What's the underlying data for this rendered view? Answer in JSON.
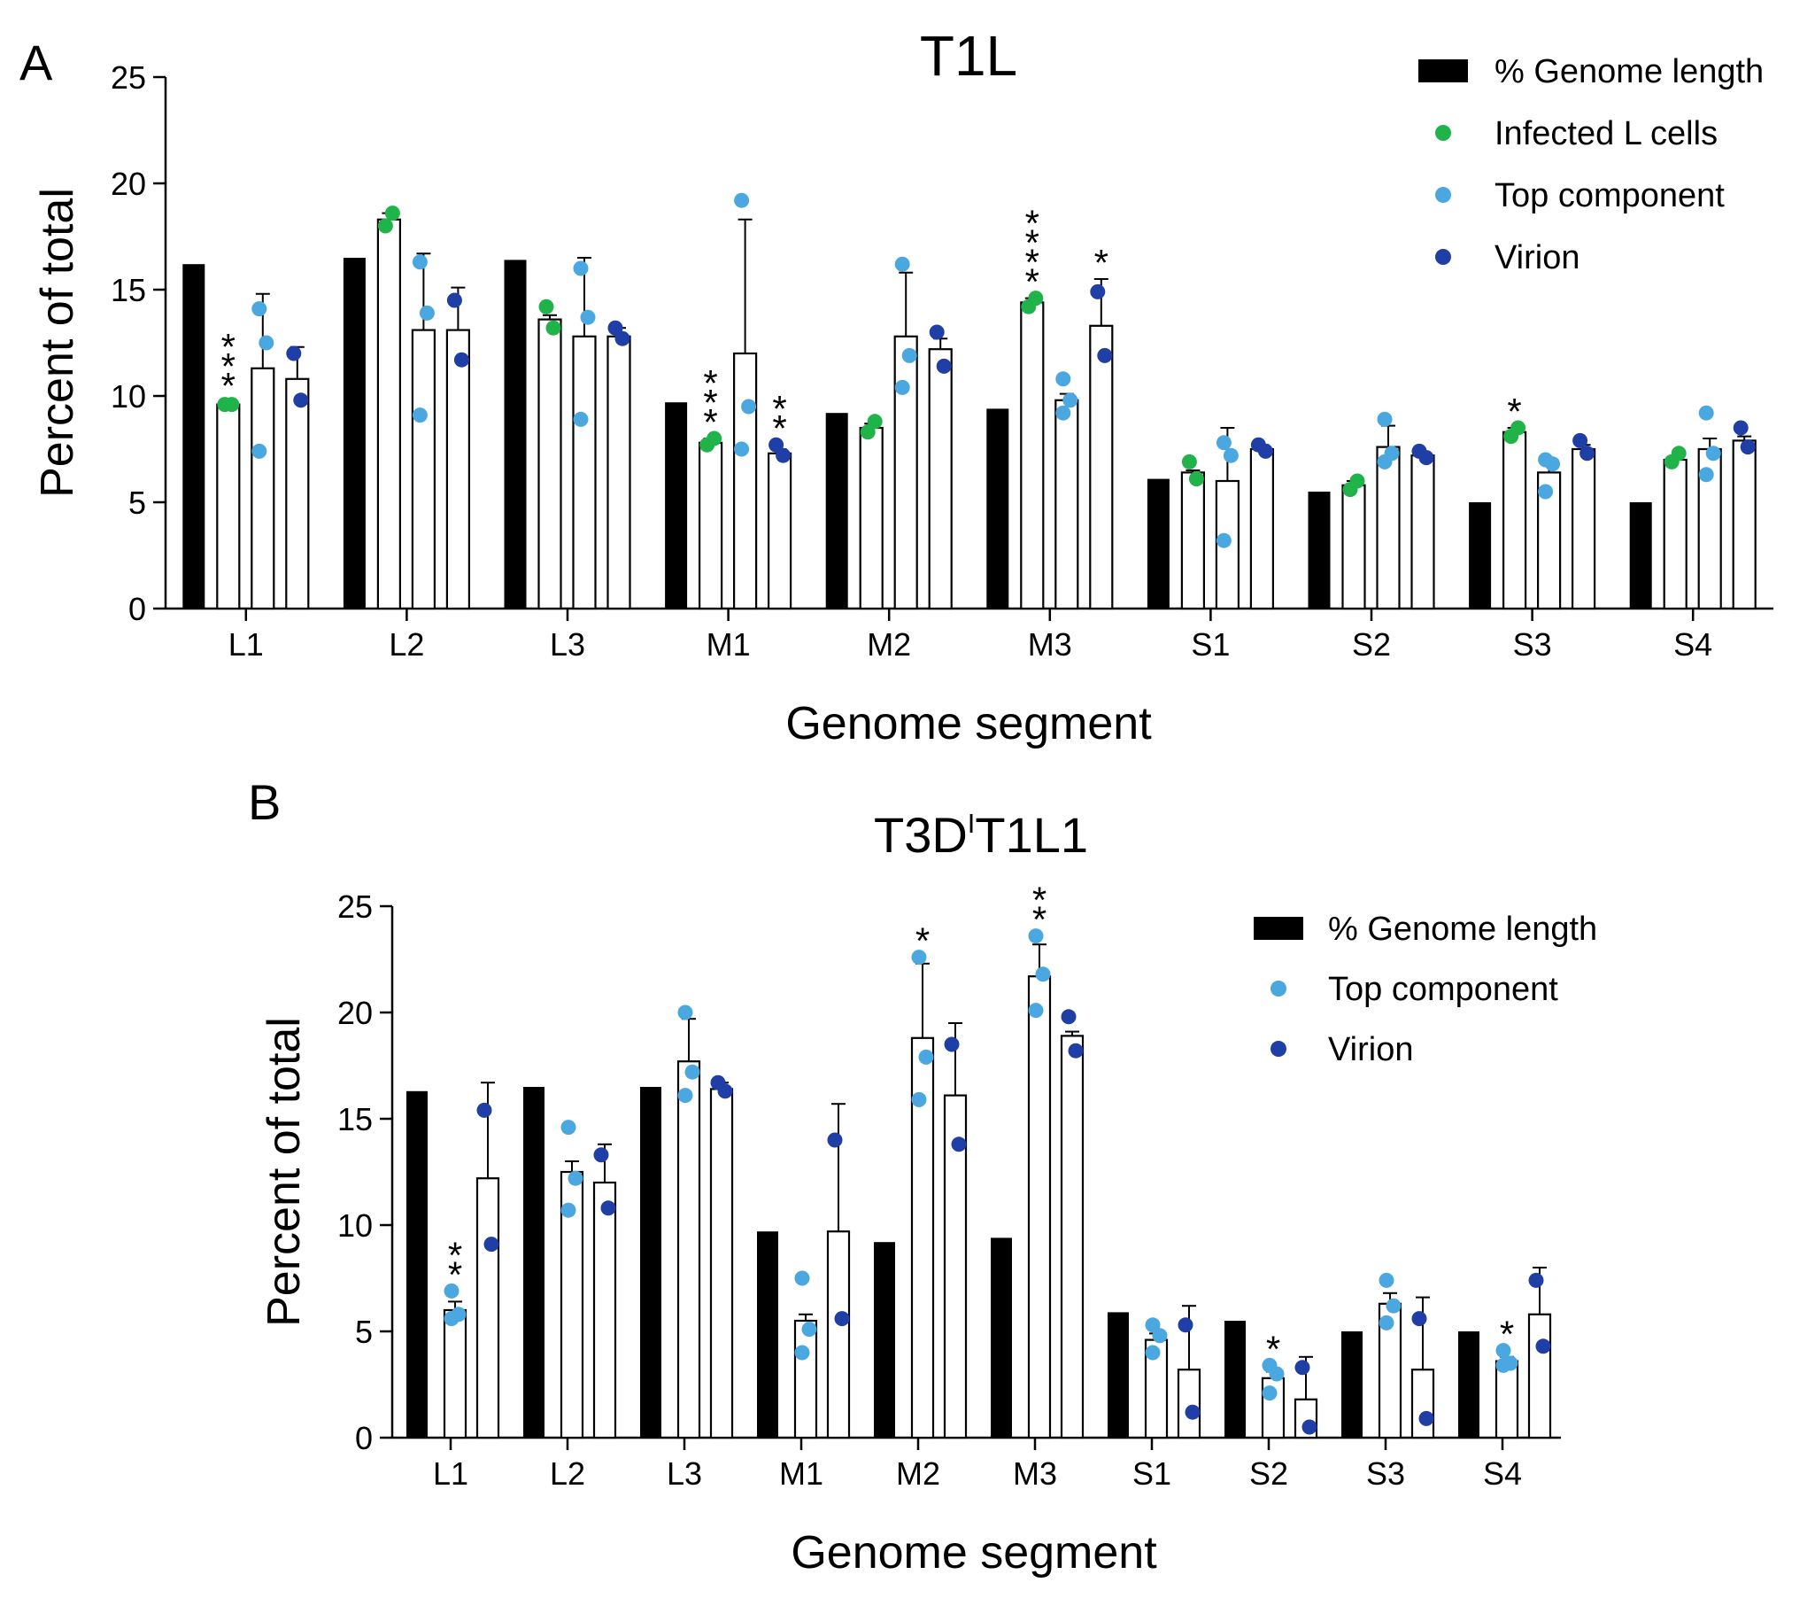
{
  "colors": {
    "genome": "#000000",
    "infected": "#1fb34a",
    "top": "#4aa7e0",
    "virion": "#1f3ea6",
    "bar_fill": "#ffffff",
    "axis": "#000000"
  },
  "chart_data": [
    {
      "panel_label": "A",
      "title": "T1L",
      "title_superscript": "",
      "type": "bar",
      "xlabel": "Genome segment",
      "ylabel": "Percent of total",
      "ylim": [
        0,
        25
      ],
      "yticks": [
        "0",
        "5",
        "10",
        "15",
        "20",
        "25"
      ],
      "categories": [
        "L1",
        "L2",
        "L3",
        "M1",
        "M2",
        "M3",
        "S1",
        "S2",
        "S3",
        "S4"
      ],
      "legend": {
        "placement": "top-right",
        "entries": [
          {
            "label": "% Genome length",
            "marker": "bar",
            "color_key": "genome"
          },
          {
            "label": "Infected L cells",
            "marker": "dot",
            "color_key": "infected"
          },
          {
            "label": "Top component",
            "marker": "dot",
            "color_key": "top"
          },
          {
            "label": "Virion",
            "marker": "dot",
            "color_key": "virion"
          }
        ]
      },
      "series": [
        {
          "name": "% Genome length",
          "style": "solid",
          "color_key": "genome",
          "values": [
            16.2,
            16.5,
            16.4,
            9.7,
            9.2,
            9.4,
            6.1,
            5.5,
            5.0,
            5.0
          ]
        },
        {
          "name": "Infected L cells",
          "style": "open",
          "color_key": "infected",
          "values": [
            9.6,
            18.3,
            13.6,
            7.8,
            8.5,
            14.4,
            6.4,
            5.8,
            8.3,
            7.0
          ],
          "error": [
            0.1,
            0.3,
            0.2,
            0.2,
            0.2,
            0.2,
            0.1,
            0.2,
            0.2,
            0.1
          ],
          "points": [
            [
              9.6,
              9.6
            ],
            [
              18.0,
              18.6
            ],
            [
              14.2,
              13.2
            ],
            [
              7.7,
              8.0
            ],
            [
              8.3,
              8.8
            ],
            [
              14.2,
              14.6
            ],
            [
              6.9,
              6.1
            ],
            [
              5.6,
              6.0
            ],
            [
              8.1,
              8.5
            ],
            [
              6.9,
              7.3
            ]
          ],
          "annotations": [
            "***",
            "",
            "",
            "***",
            "",
            "****",
            "",
            "",
            "*",
            ""
          ]
        },
        {
          "name": "Top component",
          "style": "open",
          "color_key": "top",
          "values": [
            11.3,
            13.1,
            12.8,
            12.0,
            12.8,
            9.8,
            6.0,
            7.6,
            6.4,
            7.5
          ],
          "error": [
            3.5,
            3.6,
            3.7,
            6.3,
            3.0,
            0.3,
            2.5,
            1.0,
            0.5,
            0.5
          ],
          "points": [
            [
              14.1,
              12.5,
              7.4
            ],
            [
              16.3,
              13.9,
              9.1
            ],
            [
              16.0,
              13.7,
              8.9
            ],
            [
              19.2,
              9.5,
              7.5
            ],
            [
              16.2,
              11.9,
              10.4
            ],
            [
              10.8,
              9.8,
              9.2
            ],
            [
              7.8,
              7.2,
              3.2
            ],
            [
              8.9,
              7.3,
              6.9
            ],
            [
              7.0,
              6.8,
              5.5
            ],
            [
              9.2,
              7.3,
              6.3
            ]
          ],
          "annotations": [
            "",
            "",
            "",
            "",
            "",
            "",
            "",
            "",
            "",
            ""
          ]
        },
        {
          "name": "Virion",
          "style": "open",
          "color_key": "virion",
          "values": [
            10.8,
            13.1,
            12.8,
            7.3,
            12.2,
            13.3,
            7.5,
            7.2,
            7.5,
            7.9
          ],
          "error": [
            1.5,
            2.0,
            0.4,
            0.2,
            0.5,
            2.2,
            0.2,
            0.1,
            0.2,
            0.2
          ],
          "points": [
            [
              12.0,
              9.8
            ],
            [
              14.5,
              11.7
            ],
            [
              13.2,
              12.7
            ],
            [
              7.7,
              7.2
            ],
            [
              13.0,
              11.4
            ],
            [
              14.9,
              11.9
            ],
            [
              7.7,
              7.4
            ],
            [
              7.4,
              7.1
            ],
            [
              7.9,
              7.3
            ],
            [
              8.5,
              7.6
            ]
          ],
          "annotations": [
            "",
            "",
            "",
            "**",
            "",
            "*",
            "",
            "",
            "",
            ""
          ]
        }
      ]
    },
    {
      "panel_label": "B",
      "title": "T3D",
      "title_superscript": "I",
      "title_suffix": "T1L1",
      "type": "bar",
      "xlabel": "Genome segment",
      "ylabel": "Percent of total",
      "ylim": [
        0,
        25
      ],
      "yticks": [
        "0",
        "5",
        "10",
        "15",
        "20",
        "25"
      ],
      "categories": [
        "L1",
        "L2",
        "L3",
        "M1",
        "M2",
        "M3",
        "S1",
        "S2",
        "S3",
        "S4"
      ],
      "legend": {
        "placement": "top-right",
        "entries": [
          {
            "label": "% Genome length",
            "marker": "bar",
            "color_key": "genome"
          },
          {
            "label": "Top component",
            "marker": "dot",
            "color_key": "top"
          },
          {
            "label": "Virion",
            "marker": "dot",
            "color_key": "virion"
          }
        ]
      },
      "series": [
        {
          "name": "% Genome length",
          "style": "solid",
          "color_key": "genome",
          "values": [
            16.3,
            16.5,
            16.5,
            9.7,
            9.2,
            9.4,
            5.9,
            5.5,
            5.0,
            5.0
          ]
        },
        {
          "name": "Top component",
          "style": "open",
          "color_key": "top",
          "values": [
            6.0,
            12.5,
            17.7,
            5.5,
            18.8,
            21.7,
            4.6,
            2.8,
            6.3,
            3.6
          ],
          "error": [
            0.4,
            0.5,
            2.0,
            0.3,
            3.5,
            1.5,
            0.3,
            0.3,
            0.5,
            0.2
          ],
          "points": [
            [
              6.9,
              5.8,
              5.6
            ],
            [
              14.6,
              12.2,
              10.7
            ],
            [
              20.0,
              17.2,
              16.1
            ],
            [
              7.5,
              5.1,
              4.0
            ],
            [
              22.6,
              17.9,
              15.9
            ],
            [
              23.6,
              21.8,
              20.1
            ],
            [
              5.3,
              4.8,
              4.0
            ],
            [
              3.4,
              3.0,
              2.1
            ],
            [
              7.4,
              6.2,
              5.4
            ],
            [
              4.1,
              3.5,
              3.4
            ]
          ],
          "annotations": [
            "**",
            "",
            "",
            "",
            "*",
            "**",
            "",
            "*",
            "",
            "*"
          ]
        },
        {
          "name": "Virion",
          "style": "open",
          "color_key": "virion",
          "values": [
            12.2,
            12.0,
            16.4,
            9.7,
            16.1,
            18.9,
            3.2,
            1.8,
            3.2,
            5.8
          ],
          "error": [
            4.5,
            1.8,
            0.3,
            6.0,
            3.4,
            0.2,
            3.0,
            2.0,
            3.4,
            2.2
          ],
          "points": [
            [
              15.4,
              9.1
            ],
            [
              13.3,
              10.8
            ],
            [
              16.7,
              16.3
            ],
            [
              14.0,
              5.6
            ],
            [
              18.5,
              13.8
            ],
            [
              19.8,
              18.2
            ],
            [
              5.3,
              1.2
            ],
            [
              3.3,
              0.5
            ],
            [
              5.6,
              0.9
            ],
            [
              7.4,
              4.3
            ]
          ],
          "annotations": [
            "",
            "",
            "",
            "",
            "",
            "",
            "",
            "",
            "",
            ""
          ]
        }
      ]
    }
  ]
}
